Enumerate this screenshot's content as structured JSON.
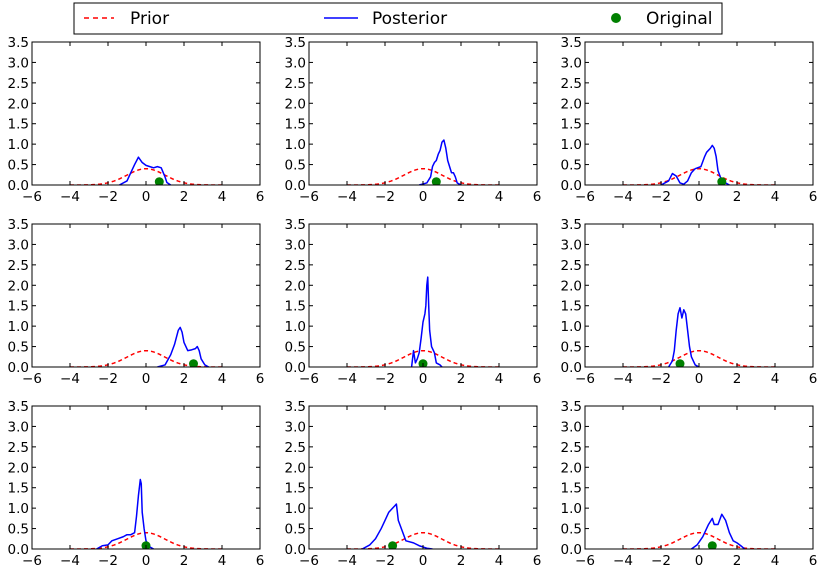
{
  "legend": {
    "items": [
      {
        "label": "Prior",
        "color": "#ff0000",
        "style": "dashed"
      },
      {
        "label": "Posterior",
        "color": "#0000ff",
        "style": "solid"
      },
      {
        "label": "Original",
        "color": "#008000",
        "style": "marker"
      }
    ],
    "placement": "top-center"
  },
  "chart_data": [
    {
      "type": "line",
      "xlim": [
        -6,
        6
      ],
      "ylim": [
        0,
        3.5
      ],
      "xticks": [
        -6,
        -4,
        -2,
        0,
        2,
        4,
        6
      ],
      "yticks": [
        0.0,
        0.5,
        1.0,
        1.5,
        2.0,
        2.5,
        3.0,
        3.5
      ],
      "series": [
        {
          "name": "Prior",
          "kind": "normal",
          "mean": 0,
          "sd": 1,
          "range": [
            -4,
            4
          ]
        },
        {
          "name": "Posterior",
          "points": [
            [
              -1.4,
              0
            ],
            [
              -1.0,
              0.1
            ],
            [
              -0.8,
              0.3
            ],
            [
              -0.6,
              0.5
            ],
            [
              -0.4,
              0.68
            ],
            [
              -0.2,
              0.55
            ],
            [
              0,
              0.48
            ],
            [
              0.2,
              0.45
            ],
            [
              0.4,
              0.42
            ],
            [
              0.6,
              0.45
            ],
            [
              0.8,
              0.42
            ],
            [
              1.0,
              0.2
            ],
            [
              1.1,
              0.06
            ],
            [
              1.3,
              0
            ]
          ]
        },
        {
          "name": "Original",
          "points": [
            [
              0.7,
              0.08
            ]
          ]
        }
      ]
    },
    {
      "type": "line",
      "xlim": [
        -6,
        6
      ],
      "ylim": [
        0,
        3.5
      ],
      "xticks": [
        -6,
        -4,
        -2,
        0,
        2,
        4,
        6
      ],
      "yticks": [
        0.0,
        0.5,
        1.0,
        1.5,
        2.0,
        2.5,
        3.0,
        3.5
      ],
      "series": [
        {
          "name": "Prior",
          "kind": "normal",
          "mean": 0,
          "sd": 1,
          "range": [
            -4,
            4
          ]
        },
        {
          "name": "Posterior",
          "points": [
            [
              -0.2,
              0
            ],
            [
              0.2,
              0.05
            ],
            [
              0.4,
              0.2
            ],
            [
              0.5,
              0.45
            ],
            [
              0.6,
              0.55
            ],
            [
              0.7,
              0.6
            ],
            [
              0.8,
              0.75
            ],
            [
              0.9,
              0.85
            ],
            [
              1.0,
              1.05
            ],
            [
              1.1,
              1.1
            ],
            [
              1.2,
              0.9
            ],
            [
              1.3,
              0.6
            ],
            [
              1.5,
              0.3
            ],
            [
              1.6,
              0.3
            ],
            [
              1.7,
              0.2
            ],
            [
              1.8,
              0.05
            ],
            [
              2.0,
              0
            ]
          ]
        },
        {
          "name": "Original",
          "points": [
            [
              0.7,
              0.08
            ]
          ]
        }
      ]
    },
    {
      "type": "line",
      "xlim": [
        -6,
        6
      ],
      "ylim": [
        0,
        3.5
      ],
      "xticks": [
        -6,
        -4,
        -2,
        0,
        2,
        4,
        6
      ],
      "yticks": [
        0.0,
        0.5,
        1.0,
        1.5,
        2.0,
        2.5,
        3.0,
        3.5
      ],
      "series": [
        {
          "name": "Prior",
          "kind": "normal",
          "mean": 0,
          "sd": 1,
          "range": [
            -4,
            4
          ]
        },
        {
          "name": "Posterior",
          "points": [
            [
              -2.0,
              0
            ],
            [
              -1.6,
              0.1
            ],
            [
              -1.4,
              0.28
            ],
            [
              -1.2,
              0.22
            ],
            [
              -1.0,
              0.05
            ],
            [
              -0.8,
              0.02
            ],
            [
              -0.6,
              0.1
            ],
            [
              -0.4,
              0.3
            ],
            [
              -0.2,
              0.4
            ],
            [
              0.1,
              0.45
            ],
            [
              0.3,
              0.7
            ],
            [
              0.4,
              0.8
            ],
            [
              0.6,
              0.9
            ],
            [
              0.7,
              0.97
            ],
            [
              0.8,
              0.9
            ],
            [
              0.9,
              0.7
            ],
            [
              1.0,
              0.35
            ],
            [
              1.2,
              0.1
            ],
            [
              1.4,
              0.05
            ],
            [
              1.6,
              0
            ]
          ]
        },
        {
          "name": "Original",
          "points": [
            [
              1.2,
              0.08
            ]
          ]
        }
      ]
    },
    {
      "type": "line",
      "xlim": [
        -6,
        6
      ],
      "ylim": [
        0,
        3.5
      ],
      "xticks": [
        -6,
        -4,
        -2,
        0,
        2,
        4,
        6
      ],
      "yticks": [
        0.0,
        0.5,
        1.0,
        1.5,
        2.0,
        2.5,
        3.0,
        3.5
      ],
      "series": [
        {
          "name": "Prior",
          "kind": "normal",
          "mean": 0,
          "sd": 1,
          "range": [
            -4,
            4
          ]
        },
        {
          "name": "Posterior",
          "points": [
            [
              0.6,
              0
            ],
            [
              1.0,
              0.05
            ],
            [
              1.3,
              0.3
            ],
            [
              1.5,
              0.55
            ],
            [
              1.7,
              0.9
            ],
            [
              1.8,
              0.97
            ],
            [
              1.9,
              0.85
            ],
            [
              2.0,
              0.6
            ],
            [
              2.2,
              0.4
            ],
            [
              2.4,
              0.42
            ],
            [
              2.6,
              0.45
            ],
            [
              2.7,
              0.5
            ],
            [
              2.8,
              0.4
            ],
            [
              2.9,
              0.2
            ],
            [
              3.1,
              0.05
            ],
            [
              3.3,
              0
            ]
          ]
        },
        {
          "name": "Original",
          "points": [
            [
              2.5,
              0.08
            ]
          ]
        }
      ]
    },
    {
      "type": "line",
      "xlim": [
        -6,
        6
      ],
      "ylim": [
        0,
        3.5
      ],
      "xticks": [
        -6,
        -4,
        -2,
        0,
        2,
        4,
        6
      ],
      "yticks": [
        0.0,
        0.5,
        1.0,
        1.5,
        2.0,
        2.5,
        3.0,
        3.5
      ],
      "series": [
        {
          "name": "Prior",
          "kind": "normal",
          "mean": 0,
          "sd": 1,
          "range": [
            -4,
            4
          ]
        },
        {
          "name": "Posterior",
          "points": [
            [
              -0.6,
              0
            ],
            [
              -0.5,
              0.4
            ],
            [
              -0.4,
              0.1
            ],
            [
              -0.3,
              0.2
            ],
            [
              -0.2,
              0.35
            ],
            [
              -0.1,
              0.7
            ],
            [
              0,
              1.1
            ],
            [
              0.1,
              1.3
            ],
            [
              0.15,
              1.5
            ],
            [
              0.2,
              2.0
            ],
            [
              0.25,
              2.2
            ],
            [
              0.3,
              1.5
            ],
            [
              0.35,
              0.9
            ],
            [
              0.45,
              0.5
            ],
            [
              0.6,
              0.35
            ],
            [
              0.7,
              0.1
            ],
            [
              0.9,
              0.05
            ],
            [
              1.0,
              0
            ]
          ]
        },
        {
          "name": "Original",
          "points": [
            [
              0.0,
              0.08
            ]
          ]
        }
      ]
    },
    {
      "type": "line",
      "xlim": [
        -6,
        6
      ],
      "ylim": [
        0,
        3.5
      ],
      "xticks": [
        -6,
        -4,
        -2,
        0,
        2,
        4,
        6
      ],
      "yticks": [
        0.0,
        0.5,
        1.0,
        1.5,
        2.0,
        2.5,
        3.0,
        3.5
      ],
      "series": [
        {
          "name": "Prior",
          "kind": "normal",
          "mean": 0,
          "sd": 1,
          "range": [
            -4,
            4
          ]
        },
        {
          "name": "Posterior",
          "points": [
            [
              -1.6,
              0
            ],
            [
              -1.4,
              0.15
            ],
            [
              -1.3,
              0.4
            ],
            [
              -1.2,
              0.9
            ],
            [
              -1.1,
              1.3
            ],
            [
              -1.0,
              1.45
            ],
            [
              -0.9,
              1.2
            ],
            [
              -0.8,
              1.4
            ],
            [
              -0.7,
              1.3
            ],
            [
              -0.6,
              0.9
            ],
            [
              -0.5,
              0.5
            ],
            [
              -0.4,
              0.25
            ],
            [
              -0.2,
              0.05
            ],
            [
              0,
              0
            ]
          ]
        },
        {
          "name": "Original",
          "points": [
            [
              -1.0,
              0.08
            ]
          ]
        }
      ]
    },
    {
      "type": "line",
      "xlim": [
        -6,
        6
      ],
      "ylim": [
        0,
        3.5
      ],
      "xticks": [
        -6,
        -4,
        -2,
        0,
        2,
        4,
        6
      ],
      "yticks": [
        0.0,
        0.5,
        1.0,
        1.5,
        2.0,
        2.5,
        3.0,
        3.5
      ],
      "series": [
        {
          "name": "Prior",
          "kind": "normal",
          "mean": 0,
          "sd": 1,
          "range": [
            -4,
            4
          ]
        },
        {
          "name": "Posterior",
          "points": [
            [
              -2.6,
              0
            ],
            [
              -2.3,
              0.08
            ],
            [
              -2.0,
              0.1
            ],
            [
              -1.8,
              0.2
            ],
            [
              -1.5,
              0.25
            ],
            [
              -1.2,
              0.3
            ],
            [
              -1.0,
              0.35
            ],
            [
              -0.8,
              0.35
            ],
            [
              -0.6,
              0.4
            ],
            [
              -0.5,
              0.8
            ],
            [
              -0.4,
              1.3
            ],
            [
              -0.3,
              1.7
            ],
            [
              -0.25,
              1.6
            ],
            [
              -0.2,
              0.9
            ],
            [
              -0.1,
              0.5
            ],
            [
              0,
              0.2
            ],
            [
              0.2,
              0.05
            ],
            [
              0.4,
              0
            ]
          ]
        },
        {
          "name": "Original",
          "points": [
            [
              0.0,
              0.08
            ]
          ]
        }
      ]
    },
    {
      "type": "line",
      "xlim": [
        -6,
        6
      ],
      "ylim": [
        0,
        3.5
      ],
      "xticks": [
        -6,
        -4,
        -2,
        0,
        2,
        4,
        6
      ],
      "yticks": [
        0.0,
        0.5,
        1.0,
        1.5,
        2.0,
        2.5,
        3.0,
        3.5
      ],
      "series": [
        {
          "name": "Prior",
          "kind": "normal",
          "mean": 0,
          "sd": 1,
          "range": [
            -4,
            4
          ]
        },
        {
          "name": "Posterior",
          "points": [
            [
              -3.2,
              0
            ],
            [
              -2.8,
              0.1
            ],
            [
              -2.5,
              0.25
            ],
            [
              -2.2,
              0.5
            ],
            [
              -2.0,
              0.7
            ],
            [
              -1.8,
              0.9
            ],
            [
              -1.6,
              1.0
            ],
            [
              -1.5,
              1.05
            ],
            [
              -1.4,
              1.1
            ],
            [
              -1.3,
              0.7
            ],
            [
              -1.1,
              0.45
            ],
            [
              -0.9,
              0.2
            ],
            [
              -0.5,
              0.15
            ],
            [
              -0.2,
              0.08
            ],
            [
              0.2,
              0.02
            ],
            [
              0.5,
              0
            ]
          ]
        },
        {
          "name": "Original",
          "points": [
            [
              -1.6,
              0.08
            ]
          ]
        }
      ]
    },
    {
      "type": "line",
      "xlim": [
        -6,
        6
      ],
      "ylim": [
        0,
        3.5
      ],
      "xticks": [
        -6,
        -4,
        -2,
        0,
        2,
        4,
        6
      ],
      "yticks": [
        0.0,
        0.5,
        1.0,
        1.5,
        2.0,
        2.5,
        3.0,
        3.5
      ],
      "series": [
        {
          "name": "Prior",
          "kind": "normal",
          "mean": 0,
          "sd": 1,
          "range": [
            -4,
            4
          ]
        },
        {
          "name": "Posterior",
          "points": [
            [
              -0.4,
              0
            ],
            [
              -0.1,
              0.1
            ],
            [
              0.2,
              0.3
            ],
            [
              0.5,
              0.6
            ],
            [
              0.7,
              0.75
            ],
            [
              0.8,
              0.6
            ],
            [
              1.0,
              0.6
            ],
            [
              1.2,
              0.85
            ],
            [
              1.4,
              0.7
            ],
            [
              1.6,
              0.4
            ],
            [
              1.8,
              0.2
            ],
            [
              2.0,
              0.15
            ],
            [
              2.2,
              0.08
            ],
            [
              2.4,
              0
            ]
          ]
        },
        {
          "name": "Original",
          "points": [
            [
              0.7,
              0.08
            ]
          ]
        }
      ]
    }
  ]
}
